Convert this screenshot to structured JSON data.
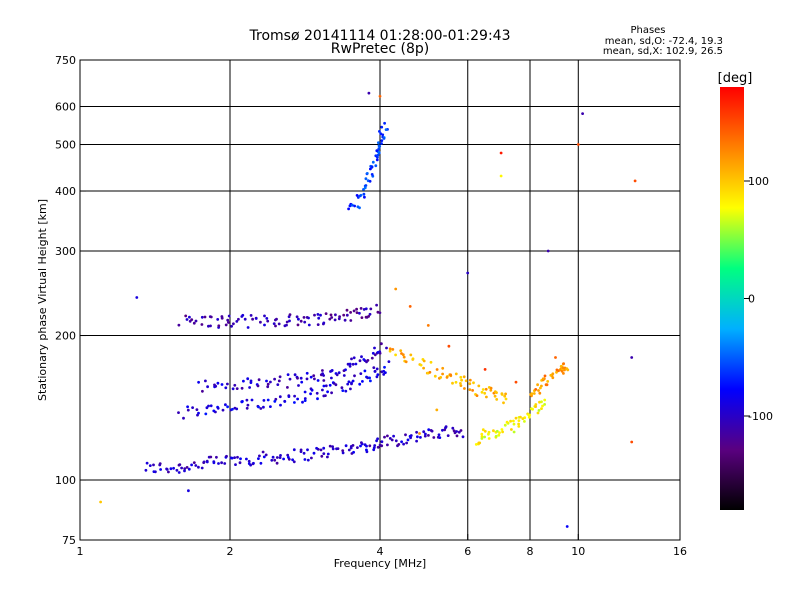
{
  "title": {
    "line1": "Tromsø 20141114 01:28:00-01:29:43",
    "line2": "RwPretec (8p)"
  },
  "phase_info": {
    "heading": "Phases",
    "o_mode": "mean, sd,O: -72.4, 19.3",
    "x_mode": "mean, sd,X: 102.9, 26.5"
  },
  "colorbar": {
    "unit": "[deg]",
    "tick_labels": [
      "100",
      "0",
      "-100"
    ],
    "tick_values": [
      100,
      0,
      -100
    ],
    "range": [
      -180,
      180
    ],
    "stops": [
      "#000000",
      "#5a0080",
      "#0000ff",
      "#00b0ff",
      "#00ff80",
      "#ffff00",
      "#ff8000",
      "#ff0000"
    ]
  },
  "chart_data": {
    "type": "scatter",
    "xlabel": "Frequency [MHz]",
    "ylabel": "Stationary phase Virtual Height [km]",
    "xscale": "log",
    "yscale": "log",
    "xlim": [
      1,
      16
    ],
    "ylim": [
      75,
      750
    ],
    "x_ticks": [
      1,
      2,
      4,
      6,
      8,
      10,
      16
    ],
    "x_tick_labels": [
      "1",
      "2",
      "4",
      "6",
      "8",
      "10",
      "16"
    ],
    "x_gridlines": [
      2,
      4,
      6,
      8,
      10
    ],
    "y_ticks": [
      75,
      100,
      200,
      300,
      400,
      500,
      600,
      750
    ],
    "y_tick_labels": [
      "75",
      "100",
      "200",
      "300",
      "400",
      "500",
      "600",
      "750"
    ],
    "y_gridlines": [
      100,
      200,
      300,
      400,
      500,
      600
    ],
    "grid": true,
    "traces": [
      {
        "name": "",
        "x": [
          1.35,
          1.55,
          1.75,
          2.0,
          2.3,
          2.6,
          3.0,
          3.4,
          3.8,
          4.2,
          4.7,
          5.3,
          5.9
        ],
        "y": [
          106,
          106,
          108,
          110,
          111,
          112,
          114,
          116,
          118,
          121,
          123,
          125,
          127
        ],
        "phase": -100
      },
      {
        "name": "",
        "x": [
          1.6,
          1.85,
          2.1,
          2.45,
          2.8,
          3.2,
          3.6,
          4.0
        ],
        "y": [
          215,
          214,
          214,
          215,
          216,
          218,
          222,
          228
        ],
        "phase": -110
      },
      {
        "name": "",
        "x": [
          1.75,
          2.1,
          2.5,
          2.9,
          3.3,
          3.7,
          4.1
        ],
        "y": [
          157,
          158,
          160,
          163,
          168,
          178,
          190
        ],
        "phase": -100
      },
      {
        "name": "",
        "x": [
          1.6,
          1.9,
          2.2,
          2.6,
          3.0,
          3.4,
          3.8,
          4.2
        ],
        "y": [
          138,
          140,
          143,
          148,
          152,
          158,
          165,
          172
        ],
        "phase": -90
      },
      {
        "name": "",
        "x": [
          3.5,
          3.7,
          3.9,
          4.0,
          4.1
        ],
        "y": [
          360,
          400,
          450,
          500,
          550
        ],
        "phase": -60
      },
      {
        "name": "",
        "x": [
          4.2,
          4.8,
          5.4,
          6.0,
          6.6,
          7.2
        ],
        "y": [
          190,
          175,
          165,
          158,
          152,
          148
        ],
        "phase": 110
      },
      {
        "name": "",
        "x": [
          6.2,
          6.8,
          7.4,
          8.0,
          8.6
        ],
        "y": [
          122,
          125,
          130,
          138,
          148
        ],
        "phase": 80
      },
      {
        "name": "",
        "x": [
          8.0,
          8.6,
          9.2,
          9.5
        ],
        "y": [
          150,
          160,
          170,
          175
        ],
        "phase": 120
      }
    ],
    "scatter_points": [
      {
        "x": 5.0,
        "y": 210,
        "phase": 130
      },
      {
        "x": 5.5,
        "y": 190,
        "phase": 150
      },
      {
        "x": 4.6,
        "y": 230,
        "phase": 140
      },
      {
        "x": 6.5,
        "y": 170,
        "phase": 160
      },
      {
        "x": 7.5,
        "y": 160,
        "phase": 150
      },
      {
        "x": 5.2,
        "y": 140,
        "phase": 110
      },
      {
        "x": 4.8,
        "y": 125,
        "phase": 120
      },
      {
        "x": 9.0,
        "y": 180,
        "phase": 140
      },
      {
        "x": 10.0,
        "y": 500,
        "phase": 150
      },
      {
        "x": 10.2,
        "y": 580,
        "phase": -110
      },
      {
        "x": 13.0,
        "y": 420,
        "phase": 150
      },
      {
        "x": 12.8,
        "y": 120,
        "phase": 150
      },
      {
        "x": 12.8,
        "y": 180,
        "phase": -110
      },
      {
        "x": 1.3,
        "y": 240,
        "phase": -90
      },
      {
        "x": 1.1,
        "y": 90,
        "phase": 100
      },
      {
        "x": 1.65,
        "y": 95,
        "phase": -90
      },
      {
        "x": 9.5,
        "y": 80,
        "phase": -80
      },
      {
        "x": 8.7,
        "y": 300,
        "phase": -110
      },
      {
        "x": 4.3,
        "y": 250,
        "phase": 120
      },
      {
        "x": 6.0,
        "y": 270,
        "phase": -100
      },
      {
        "x": 7.0,
        "y": 430,
        "phase": 80
      },
      {
        "x": 7.0,
        "y": 480,
        "phase": 170
      },
      {
        "x": 3.8,
        "y": 640,
        "phase": -110
      },
      {
        "x": 4.0,
        "y": 630,
        "phase": 140
      }
    ]
  }
}
